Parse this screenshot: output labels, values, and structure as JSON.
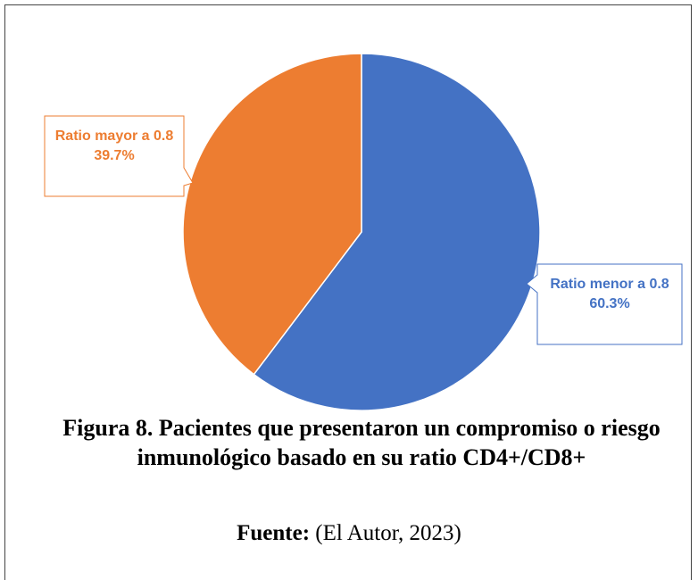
{
  "chart_data": {
    "type": "pie",
    "title": "Figura 8. Pacientes que presentaron un compromiso o riesgo inmunológico basado en su ratio CD4+/CD8+",
    "source_label": "Fuente:",
    "source": "(El Autor, 2023)",
    "categories": [
      "Ratio menor a 0.8",
      "Ratio mayor a 0.8"
    ],
    "values": [
      60.3,
      39.7
    ],
    "value_labels": [
      "60.3%",
      "39.7%"
    ],
    "colors": [
      "#4472c4",
      "#ed7d31"
    ]
  }
}
